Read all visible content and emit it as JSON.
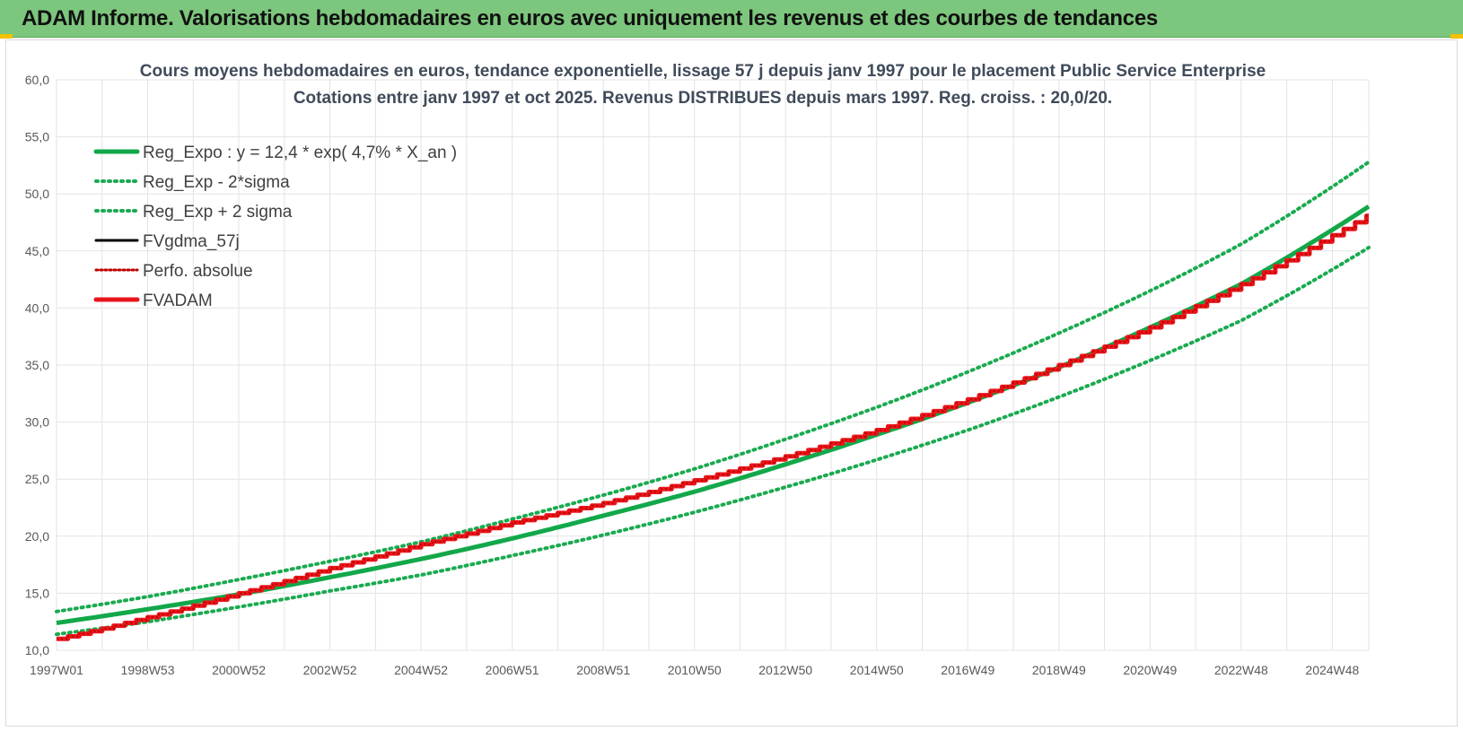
{
  "banner": {
    "title": "ADAM Informe. Valorisations hebdomadaires en euros avec uniquement les revenus et des courbes de tendances"
  },
  "colors": {
    "banner_bg": "#7dc67d",
    "reg_expo": "#12a84a",
    "reg_band": "#1aaa50",
    "fvgdma": "#000000",
    "perfo": "#c00000",
    "fvadam": "#e8161b"
  },
  "chart_data": {
    "type": "line",
    "title": [
      "Cours moyens hebdomadaires en euros, tendance exponentielle, lissage 57 j depuis janv 1997 pour le placement Public Service Enterprise",
      "Cotations entre janv 1997 et oct 2025. Revenus DISTRIBUES depuis mars 1997. Reg. croiss. : 20,0/20."
    ],
    "x_tick_labels": [
      "1997W01",
      "1998W53",
      "2000W52",
      "2002W52",
      "2004W52",
      "2006W51",
      "2008W51",
      "2010W50",
      "2012W50",
      "2014W50",
      "2016W49",
      "2018W49",
      "2020W49",
      "2022W48",
      "2024W48"
    ],
    "x_range_years": [
      1997.0,
      2025.8
    ],
    "ylim": [
      10,
      60
    ],
    "y_ticks": [
      "10,0",
      "15,0",
      "20,0",
      "25,0",
      "30,0",
      "35,0",
      "40,0",
      "45,0",
      "50,0",
      "55,0",
      "60,0"
    ],
    "grid": true,
    "legend_position": "top-left",
    "series": [
      {
        "name": "Reg_Expo : y = 12,4 * exp( 4,7% *  X_an )",
        "style": "solid-thick",
        "x": [
          1997,
          1999,
          2001,
          2003,
          2005,
          2007,
          2009,
          2011,
          2013,
          2015,
          2017,
          2019,
          2021,
          2023,
          2025.8
        ],
        "y": [
          12.4,
          13.6,
          14.9,
          16.4,
          18.0,
          19.8,
          21.8,
          23.9,
          26.3,
          28.9,
          31.7,
          34.8,
          38.3,
          42.1,
          48.9
        ]
      },
      {
        "name": "Reg_Exp - 2*sigma",
        "style": "dotted",
        "x": [
          1997,
          1999,
          2001,
          2003,
          2005,
          2007,
          2009,
          2011,
          2013,
          2015,
          2017,
          2019,
          2021,
          2023,
          2025.8
        ],
        "y": [
          11.4,
          12.5,
          13.8,
          15.2,
          16.6,
          18.3,
          20.1,
          22.1,
          24.3,
          26.7,
          29.3,
          32.2,
          35.4,
          38.9,
          45.3
        ]
      },
      {
        "name": "Reg_Exp + 2 sigma",
        "style": "dotted",
        "x": [
          1997,
          1999,
          2001,
          2003,
          2005,
          2007,
          2009,
          2011,
          2013,
          2015,
          2017,
          2019,
          2021,
          2023,
          2025.8
        ],
        "y": [
          13.4,
          14.7,
          16.2,
          17.8,
          19.5,
          21.5,
          23.6,
          25.9,
          28.5,
          31.3,
          34.4,
          37.8,
          41.5,
          45.6,
          52.8
        ]
      },
      {
        "name": "FVgdma_57j",
        "style": "solid",
        "x": [
          1997,
          1999,
          2001,
          2003,
          2005,
          2007,
          2009,
          2011,
          2013,
          2015,
          2017,
          2019,
          2021,
          2023,
          2025.8
        ],
        "y": [
          11.0,
          12.9,
          15.0,
          17.2,
          19.3,
          21.2,
          22.9,
          24.9,
          27.0,
          29.3,
          32.0,
          35.0,
          38.3,
          42.1,
          48.2
        ]
      },
      {
        "name": "Perfo. absolue",
        "style": "dotted",
        "x": [
          1997,
          1999,
          2001,
          2003,
          2005,
          2007,
          2009,
          2011,
          2013,
          2015,
          2017,
          2019,
          2021,
          2023,
          2025.8
        ],
        "y": [
          11.0,
          12.9,
          15.0,
          17.2,
          19.3,
          21.2,
          22.9,
          24.9,
          27.0,
          29.3,
          32.0,
          35.0,
          38.3,
          42.1,
          48.2
        ]
      },
      {
        "name": "FVADAM",
        "style": "solid-thick",
        "x": [
          1997,
          1999,
          2001,
          2003,
          2005,
          2007,
          2009,
          2011,
          2013,
          2015,
          2017,
          2019,
          2021,
          2023,
          2025.8
        ],
        "y": [
          11.0,
          12.9,
          15.0,
          17.2,
          19.3,
          21.2,
          22.9,
          24.9,
          27.0,
          29.3,
          32.0,
          35.0,
          38.3,
          42.1,
          48.2
        ]
      }
    ]
  }
}
